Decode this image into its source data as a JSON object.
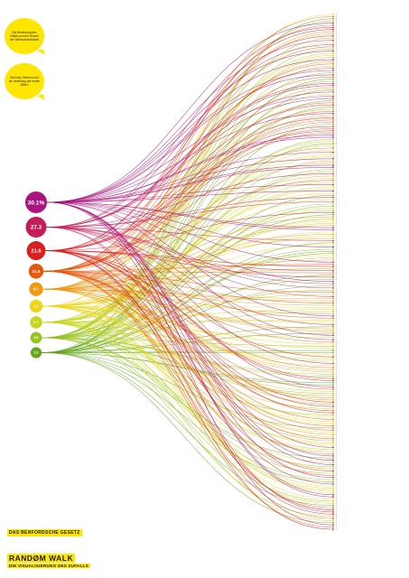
{
  "poster": {
    "section_label": "DAS BENFORDSCHE GESETZ",
    "title": "RANDØM WALK",
    "subtitle": "DIE VISUALISIERUNG DES ZUFALLS"
  },
  "bubbles": [
    {
      "text": "Die Bedeutung des Zufalls und der Nutzen der Wahrscheinlichkeit"
    },
    {
      "text": "Sieh hier: Benford und die Verteilung der ersten Ziffern"
    }
  ],
  "colors": {
    "1": "#a8157f",
    "2": "#c41e5a",
    "3": "#d82020",
    "4": "#e65a0f",
    "5": "#ee9a12",
    "6": "#efd51a",
    "7": "#c8d51e",
    "8": "#96c31e",
    "9": "#66a61f",
    "accent": "#ffe600"
  },
  "chart_data": {
    "type": "flow",
    "digits": [
      1,
      2,
      3,
      4,
      5,
      6,
      7,
      8,
      9
    ],
    "labels": [
      "30.1%",
      "27.3",
      "21.6",
      "11.9",
      "9.7",
      "7.9",
      "6.7",
      "5.8",
      "5.1"
    ],
    "values": [
      30.1,
      27.3,
      21.6,
      11.9,
      9.7,
      7.9,
      6.7,
      5.8,
      5.1
    ],
    "targets": [
      "6",
      "4",
      "9",
      "8",
      "1",
      "4",
      "2",
      "3",
      "5",
      "5",
      "3",
      "8",
      "1",
      "6",
      "2",
      "4",
      "8",
      "1",
      "7",
      "7",
      "8",
      "1",
      "5",
      "4",
      "8",
      "3",
      "1",
      "8",
      "1",
      "4",
      "9",
      "8",
      "2",
      "2",
      "5",
      "9",
      "2",
      "7",
      "1",
      "2",
      "9",
      "4",
      "3",
      "9",
      "5",
      "4",
      "1",
      "5",
      "3",
      "4",
      "4",
      "9",
      "3",
      "4",
      "3",
      "4",
      "1",
      "1",
      "8",
      "7",
      "9",
      "7",
      "4",
      "7",
      "1",
      "6",
      "7",
      "1",
      "8",
      "5",
      "1",
      "1",
      "8",
      "8",
      "2",
      "5",
      "7",
      "4",
      "7",
      "1",
      "7",
      "7",
      "1",
      "6",
      "9",
      "2",
      "6",
      "2",
      "8",
      "9",
      "7",
      "8",
      "3",
      "9",
      "5",
      "8",
      "6",
      "7",
      "5",
      "1",
      "1",
      "6",
      "5",
      "6",
      "5",
      "2",
      "9",
      "6",
      "1",
      "8",
      "9",
      "9",
      "6",
      "8",
      "5",
      "1",
      "4",
      "3",
      "5",
      "3",
      "4",
      "9",
      "3",
      "8",
      "1",
      "2",
      "9",
      "2",
      "8",
      "4",
      "7",
      "2",
      "5",
      "5",
      "4",
      "5",
      "6",
      "7",
      "8",
      "5",
      "1",
      "4",
      "7",
      "6",
      "2",
      "9",
      "5",
      "5",
      "9",
      "1",
      "7",
      "2",
      "4",
      "6",
      "8",
      "6",
      "9",
      "9",
      "6",
      "3",
      "7",
      "7",
      "2",
      "6",
      "4",
      "5",
      "5",
      "8",
      "8",
      "3",
      "3",
      "9",
      "9",
      "2",
      "4",
      "7",
      "8",
      "8",
      "5",
      "5",
      "3",
      "5",
      "3",
      "7",
      "4",
      "3",
      "8",
      "6",
      "4",
      "6",
      "6",
      "4",
      "9",
      "4",
      "6",
      "5",
      "7",
      "4",
      "5",
      "7",
      "6",
      "1",
      "7",
      "7",
      "4",
      "1",
      "9",
      "1",
      "7",
      "1",
      "8",
      "5",
      "3",
      "8",
      "4",
      "1",
      "8",
      "9",
      "2",
      "6",
      "7",
      "7",
      "6",
      "1",
      "1",
      "6",
      "8",
      "7",
      "9",
      "4",
      "3",
      "2",
      "3",
      "8",
      "4",
      "7",
      "9",
      "1",
      "4",
      "3"
    ]
  }
}
